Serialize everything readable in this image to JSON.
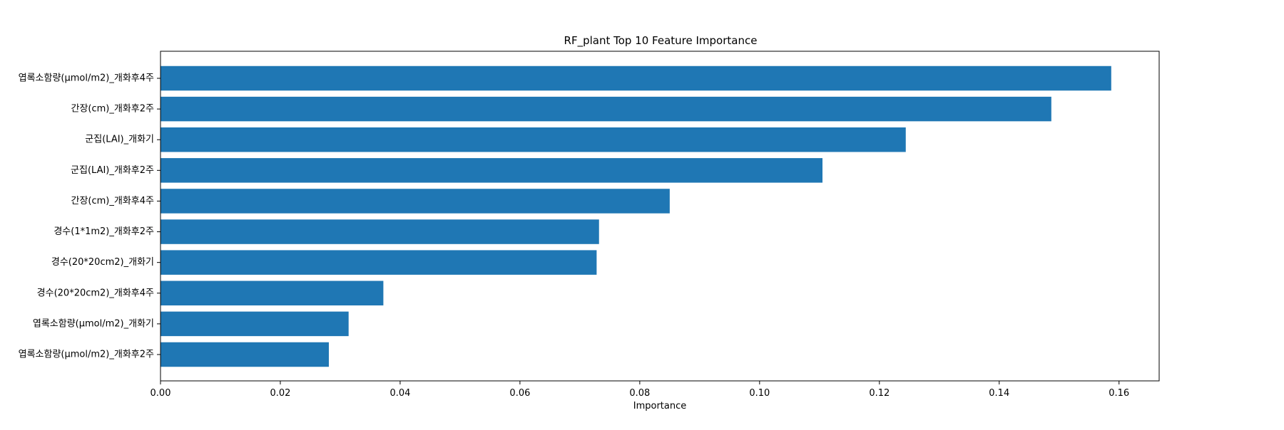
{
  "chart_data": {
    "type": "bar",
    "orientation": "horizontal",
    "title": "RF_plant Top 10 Feature Importance",
    "xlabel": "Importance",
    "ylabel": "",
    "xlim": [
      0,
      0.1667
    ],
    "x_ticks": [
      0.0,
      0.02,
      0.04,
      0.06,
      0.08,
      0.1,
      0.12,
      0.14,
      0.16
    ],
    "x_tick_labels": [
      "0.00",
      "0.02",
      "0.04",
      "0.06",
      "0.08",
      "0.10",
      "0.12",
      "0.14",
      "0.16"
    ],
    "grid": false,
    "legend": "none",
    "bar_color": "#1f77b4",
    "categories": [
      "엽록소함량(μmol/m2)_개화후4주",
      "간장(cm)_개화후2주",
      "군집(LAI)_개화기",
      "군집(LAI)_개화후2주",
      "간장(cm)_개화후4주",
      "경수(1*1m2)_개화후2주",
      "경수(20*20cm2)_개화기",
      "경수(20*20cm2)_개화후4주",
      "엽록소함량(μmol/m2)_개화기",
      "엽록소함량(μmol/m2)_개화후2주"
    ],
    "values": [
      0.1587,
      0.1487,
      0.1244,
      0.1105,
      0.085,
      0.0732,
      0.0728,
      0.0372,
      0.0314,
      0.0281
    ]
  }
}
